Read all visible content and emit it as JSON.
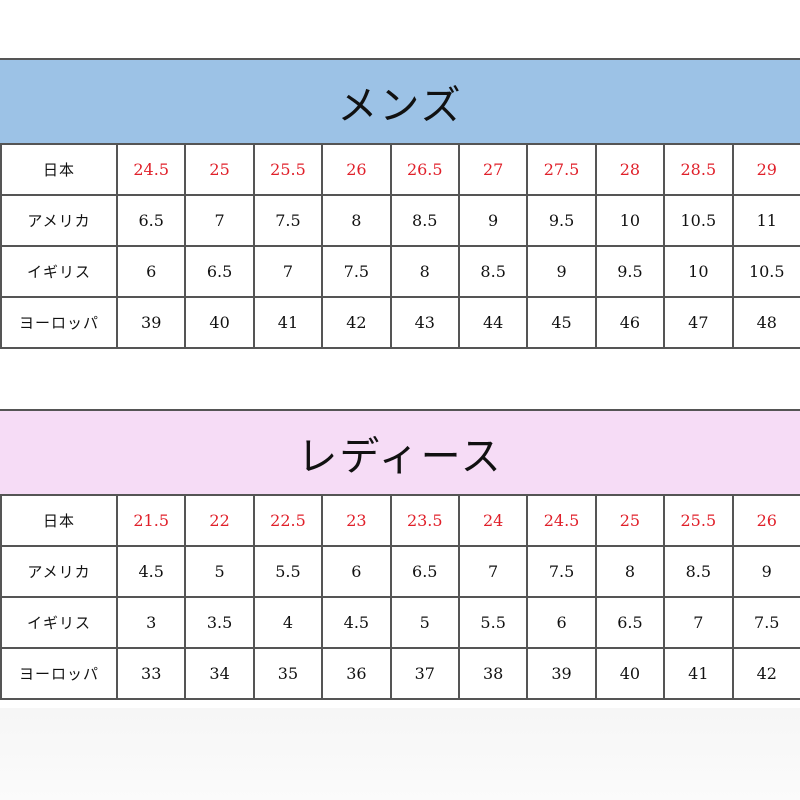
{
  "colors": {
    "mens_band": "#9cc2e6",
    "womens_band": "#f6dcf6",
    "japan_size_text": "#e0202a",
    "border": "#555555"
  },
  "mens": {
    "title": "メンズ",
    "rows": [
      {
        "label": "日本",
        "values": [
          "24.5",
          "25",
          "25.5",
          "26",
          "26.5",
          "27",
          "27.5",
          "28",
          "28.5",
          "29"
        ]
      },
      {
        "label": "アメリカ",
        "values": [
          "6.5",
          "7",
          "7.5",
          "8",
          "8.5",
          "9",
          "9.5",
          "10",
          "10.5",
          "11"
        ]
      },
      {
        "label": "イギリス",
        "values": [
          "6",
          "6.5",
          "7",
          "7.5",
          "8",
          "8.5",
          "9",
          "9.5",
          "10",
          "10.5"
        ]
      },
      {
        "label": "ヨーロッパ",
        "values": [
          "39",
          "40",
          "41",
          "42",
          "43",
          "44",
          "45",
          "46",
          "47",
          "48"
        ]
      }
    ]
  },
  "womens": {
    "title": "レディース",
    "rows": [
      {
        "label": "日本",
        "values": [
          "21.5",
          "22",
          "22.5",
          "23",
          "23.5",
          "24",
          "24.5",
          "25",
          "25.5",
          "26"
        ]
      },
      {
        "label": "アメリカ",
        "values": [
          "4.5",
          "5",
          "5.5",
          "6",
          "6.5",
          "7",
          "7.5",
          "8",
          "8.5",
          "9"
        ]
      },
      {
        "label": "イギリス",
        "values": [
          "3",
          "3.5",
          "4",
          "4.5",
          "5",
          "5.5",
          "6",
          "6.5",
          "7",
          "7.5"
        ]
      },
      {
        "label": "ヨーロッパ",
        "values": [
          "33",
          "34",
          "35",
          "36",
          "37",
          "38",
          "39",
          "40",
          "41",
          "42"
        ]
      }
    ]
  }
}
